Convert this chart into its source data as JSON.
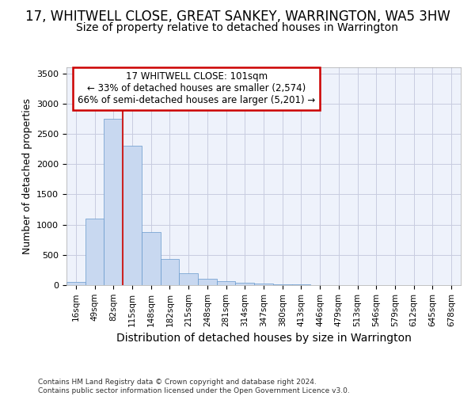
{
  "title": "17, WHITWELL CLOSE, GREAT SANKEY, WARRINGTON, WA5 3HW",
  "subtitle": "Size of property relative to detached houses in Warrington",
  "xlabel": "Distribution of detached houses by size in Warrington",
  "ylabel": "Number of detached properties",
  "categories": [
    "16sqm",
    "49sqm",
    "82sqm",
    "115sqm",
    "148sqm",
    "182sqm",
    "215sqm",
    "248sqm",
    "281sqm",
    "314sqm",
    "347sqm",
    "380sqm",
    "413sqm",
    "446sqm",
    "479sqm",
    "513sqm",
    "546sqm",
    "579sqm",
    "612sqm",
    "645sqm",
    "678sqm"
  ],
  "values": [
    50,
    1100,
    2750,
    2300,
    880,
    430,
    200,
    100,
    60,
    40,
    20,
    15,
    10,
    5,
    2,
    1,
    1,
    0,
    0,
    0,
    0
  ],
  "bar_color": "#c8d8f0",
  "bar_edge_color": "#6699cc",
  "annotation_box_text": "17 WHITWELL CLOSE: 101sqm\n← 33% of detached houses are smaller (2,574)\n66% of semi-detached houses are larger (5,201) →",
  "annotation_box_color": "#ffffff",
  "annotation_box_edge_color": "#cc0000",
  "vline_color": "#cc2222",
  "ylim": [
    0,
    3600
  ],
  "background_color": "#eef2fb",
  "grid_color": "#c8cce0",
  "footer_text": "Contains HM Land Registry data © Crown copyright and database right 2024.\nContains public sector information licensed under the Open Government Licence v3.0.",
  "title_fontsize": 12,
  "subtitle_fontsize": 10,
  "ylabel_fontsize": 9,
  "xlabel_fontsize": 10
}
